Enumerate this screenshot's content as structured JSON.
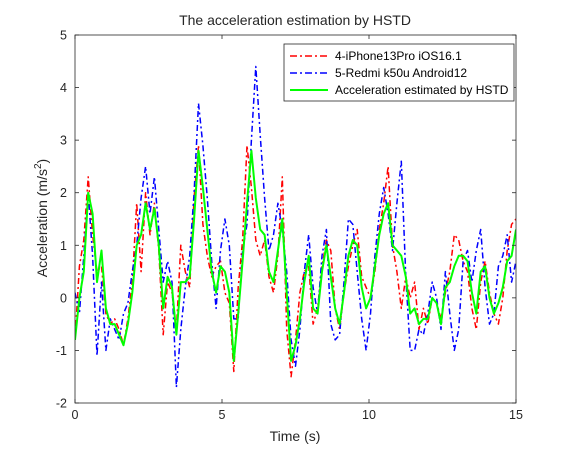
{
  "chart_data": {
    "type": "line",
    "title": "The acceleration estimation by HSTD",
    "xlabel": "Time (s)",
    "ylabel": "Acceleration (m/s",
    "ylabel_superscript": "2",
    "ylabel_suffix": ")",
    "xlim": [
      0,
      15
    ],
    "ylim": [
      -2,
      5
    ],
    "xticks": [
      0,
      5,
      10,
      15
    ],
    "yticks": [
      -2,
      -1,
      0,
      1,
      2,
      3,
      4,
      5
    ],
    "grid": false,
    "legend_position": "top-right",
    "x": [
      0.0,
      0.15,
      0.3,
      0.45,
      0.6,
      0.75,
      0.9,
      1.05,
      1.2,
      1.35,
      1.5,
      1.65,
      1.8,
      1.95,
      2.1,
      2.25,
      2.4,
      2.55,
      2.7,
      2.85,
      3.0,
      3.15,
      3.3,
      3.45,
      3.6,
      3.75,
      3.9,
      4.05,
      4.2,
      4.35,
      4.5,
      4.65,
      4.8,
      4.95,
      5.1,
      5.25,
      5.4,
      5.55,
      5.7,
      5.85,
      6.0,
      6.15,
      6.3,
      6.45,
      6.6,
      6.75,
      6.9,
      7.05,
      7.2,
      7.35,
      7.5,
      7.65,
      7.8,
      7.95,
      8.1,
      8.25,
      8.4,
      8.55,
      8.7,
      8.85,
      9.0,
      9.15,
      9.3,
      9.45,
      9.6,
      9.75,
      9.9,
      10.05,
      10.2,
      10.35,
      10.5,
      10.65,
      10.8,
      10.95,
      11.1,
      11.25,
      11.4,
      11.55,
      11.7,
      11.85,
      12.0,
      12.15,
      12.3,
      12.45,
      12.6,
      12.75,
      12.9,
      13.05,
      13.2,
      13.35,
      13.5,
      13.65,
      13.8,
      13.95,
      14.1,
      14.25,
      14.4,
      14.55,
      14.7,
      14.85,
      15.0
    ],
    "series": [
      {
        "name": "4-iPhone13Pro iOS16.1",
        "color": "#ff0000",
        "line_style": "dashdot",
        "values": [
          -0.8,
          0.6,
          1.1,
          2.3,
          1.2,
          0.5,
          0.6,
          -0.3,
          -0.5,
          -0.4,
          -0.6,
          -0.9,
          -0.4,
          0.3,
          1.8,
          0.5,
          2.0,
          1.2,
          1.8,
          0.9,
          -0.7,
          0.3,
          0.1,
          -0.6,
          1.0,
          0.5,
          0.2,
          1.9,
          2.9,
          1.4,
          0.8,
          0.4,
          0.6,
          0.7,
          0.1,
          -0.1,
          -1.4,
          0.2,
          1.1,
          2.9,
          2.1,
          1.1,
          0.8,
          1.1,
          0.4,
          0.1,
          0.8,
          2.3,
          -0.6,
          -1.5,
          -0.8,
          0.1,
          0.5,
          0.6,
          -0.5,
          -0.2,
          0.6,
          1.1,
          0.9,
          -0.2,
          -0.6,
          0.1,
          0.6,
          1.0,
          1.3,
          0.4,
          0.2,
          0.0,
          0.5,
          1.3,
          1.8,
          2.5,
          1.0,
          0.5,
          -0.2,
          0.4,
          0.0,
          0.3,
          -0.6,
          -0.2,
          -0.5,
          0.0,
          -0.1,
          -0.4,
          0.1,
          0.5,
          1.2,
          1.1,
          0.7,
          0.5,
          -0.2,
          -0.6,
          0.3,
          0.7,
          0.1,
          -0.3,
          -0.5,
          0.0,
          0.9,
          1.4,
          1.5
        ]
      },
      {
        "name": "5-Redmi k50u Android12",
        "color": "#0000ff",
        "line_style": "dashdot",
        "values": [
          0.1,
          -0.3,
          0.8,
          2.0,
          0.8,
          -1.1,
          0.3,
          -1.0,
          -0.4,
          -0.6,
          -0.8,
          -0.3,
          -0.1,
          0.5,
          1.0,
          1.9,
          2.5,
          1.6,
          2.3,
          1.3,
          0.3,
          0.7,
          0.3,
          -1.7,
          -0.6,
          0.2,
          0.8,
          2.0,
          3.7,
          2.9,
          1.9,
          0.7,
          -0.2,
          0.9,
          1.5,
          1.0,
          -0.4,
          -0.4,
          0.9,
          1.4,
          3.0,
          4.4,
          3.1,
          1.9,
          0.9,
          1.2,
          1.8,
          1.3,
          0.5,
          -0.8,
          -1.3,
          -0.6,
          0.5,
          1.2,
          0.2,
          -0.3,
          0.8,
          1.3,
          -0.5,
          -0.8,
          -0.7,
          0.3,
          1.5,
          1.4,
          0.5,
          -0.4,
          -1.0,
          -0.3,
          0.8,
          1.6,
          2.1,
          1.6,
          0.9,
          1.8,
          2.6,
          0.4,
          -1.0,
          -1.0,
          -0.6,
          -0.7,
          -0.3,
          0.3,
          0.0,
          -0.6,
          0.5,
          -0.3,
          -1.0,
          -0.6,
          0.7,
          0.9,
          0.3,
          0.9,
          1.3,
          0.2,
          -0.5,
          -0.3,
          0.6,
          0.8,
          1.2,
          0.3,
          0.7
        ]
      },
      {
        "name": "Acceleration estimated by HSTD",
        "color": "#00ff00",
        "line_style": "solid",
        "values": [
          -0.8,
          0.0,
          0.5,
          2.0,
          1.6,
          0.3,
          0.9,
          -0.2,
          -0.5,
          -0.5,
          -0.7,
          -0.9,
          -0.5,
          0.1,
          1.0,
          1.2,
          1.8,
          1.3,
          1.7,
          1.0,
          -0.2,
          0.4,
          0.2,
          -0.7,
          0.3,
          0.3,
          0.4,
          1.5,
          2.8,
          2.1,
          1.3,
          0.5,
          0.1,
          0.6,
          0.5,
          0.1,
          -1.2,
          -0.3,
          0.7,
          1.8,
          2.8,
          1.9,
          1.3,
          1.2,
          0.5,
          0.3,
          0.9,
          1.5,
          0.1,
          -1.2,
          -0.9,
          -0.4,
          0.3,
          0.8,
          -0.2,
          -0.3,
          0.5,
          1.0,
          0.4,
          -0.2,
          -0.5,
          0.1,
          0.8,
          1.1,
          1.0,
          0.2,
          -0.2,
          0.0,
          0.6,
          1.2,
          1.6,
          1.8,
          1.0,
          0.9,
          0.8,
          0.4,
          -0.3,
          -0.2,
          -0.5,
          -0.4,
          -0.4,
          0.0,
          -0.1,
          -0.5,
          0.2,
          0.3,
          0.6,
          0.8,
          0.8,
          0.7,
          0.1,
          -0.3,
          0.5,
          0.6,
          0.0,
          -0.3,
          -0.1,
          0.2,
          0.7,
          0.8,
          1.3
        ]
      }
    ]
  }
}
